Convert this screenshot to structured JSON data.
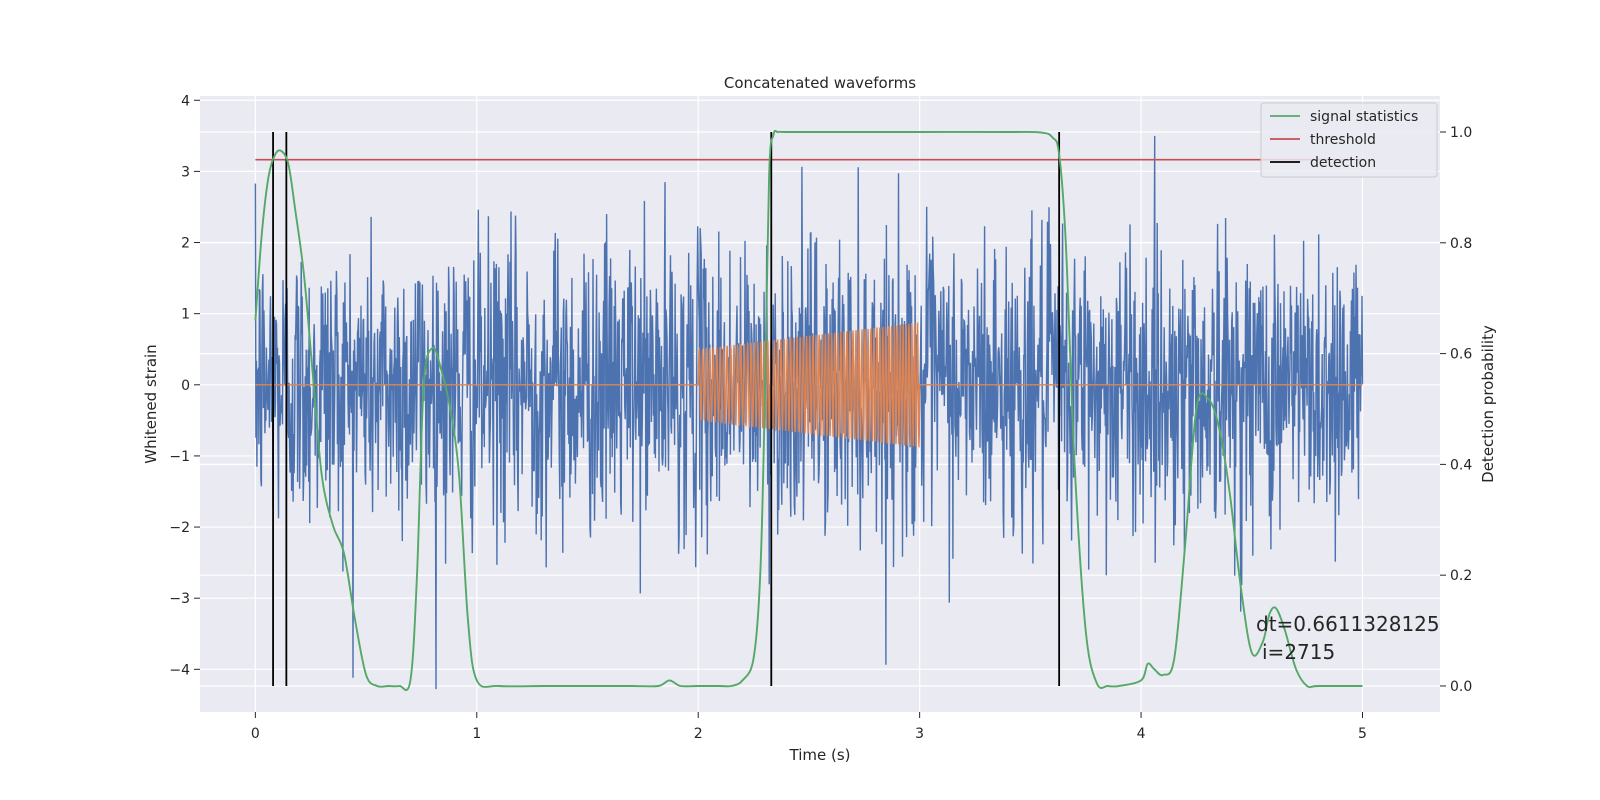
{
  "chart_data": {
    "type": "line",
    "title": "Concatenated waveforms",
    "xlabel": "Time (s)",
    "ylabel_left": "Whitened strain",
    "ylabel_right": "Detection probability",
    "xlim": [
      -0.25,
      5.35
    ],
    "ylim_left": [
      -4.6,
      4.06
    ],
    "ylim_right": [
      -0.047,
      1.065
    ],
    "xticks": [
      0,
      1,
      2,
      3,
      4,
      5
    ],
    "xtick_labels": [
      "0",
      "1",
      "2",
      "3",
      "4",
      "5"
    ],
    "yticks_left": [
      -4,
      -3,
      -2,
      -1,
      0,
      1,
      2,
      3,
      4
    ],
    "ytick_labels_left": [
      "−4",
      "−3",
      "−2",
      "−1",
      "0",
      "1",
      "2",
      "3",
      "4"
    ],
    "yticks_right": [
      0.0,
      0.2,
      0.4,
      0.6,
      0.8,
      1.0
    ],
    "ytick_labels_right": [
      "0.0",
      "0.2",
      "0.4",
      "0.6",
      "0.8",
      "1.0"
    ],
    "grid": true,
    "legend_position": "top-right",
    "legend": [
      {
        "label": "signal statistics",
        "color": "#55a868"
      },
      {
        "label": "threshold",
        "color": "#c44e52"
      },
      {
        "label": "detection",
        "color": "#000000"
      }
    ],
    "noise": {
      "color": "#4c72b0",
      "x_range": [
        0,
        5
      ],
      "typical_amplitude": 1.2,
      "peak": 3.65,
      "trough": -4.4
    },
    "injection": {
      "color": "#dd8452",
      "x_range": [
        2.0,
        3.0
      ],
      "amp_start": 0.5,
      "amp_end": 0.88
    },
    "signal_statistics": {
      "x": [
        0,
        0.03,
        0.06,
        0.09,
        0.12,
        0.15,
        0.18,
        0.22,
        0.26,
        0.3,
        0.35,
        0.4,
        0.45,
        0.5,
        0.55,
        0.6,
        0.65,
        0.7,
        0.73,
        0.76,
        0.8,
        0.84,
        0.88,
        0.92,
        0.96,
        1.0,
        1.1,
        1.3,
        1.5,
        1.7,
        1.82,
        1.87,
        1.92,
        2.0,
        2.1,
        2.15,
        2.2,
        2.25,
        2.28,
        2.3,
        2.32,
        2.34,
        2.36,
        2.4,
        2.6,
        3.0,
        3.4,
        3.55,
        3.6,
        3.63,
        3.66,
        3.7,
        3.75,
        3.8,
        3.85,
        3.9,
        4.0,
        4.03,
        4.06,
        4.1,
        4.15,
        4.2,
        4.25,
        4.3,
        4.35,
        4.4,
        4.45,
        4.5,
        4.55,
        4.58,
        4.61,
        4.65,
        4.7,
        4.75,
        4.8,
        5.0
      ],
      "y": [
        0.66,
        0.82,
        0.92,
        0.96,
        0.965,
        0.94,
        0.86,
        0.74,
        0.56,
        0.38,
        0.29,
        0.24,
        0.12,
        0.02,
        0.0,
        0.0,
        0.0,
        0.01,
        0.2,
        0.54,
        0.61,
        0.57,
        0.5,
        0.38,
        0.12,
        0.01,
        0.0,
        0.0,
        0.0,
        0.0,
        0.0,
        0.01,
        0.0,
        0.0,
        0.0,
        0.0,
        0.01,
        0.05,
        0.2,
        0.5,
        0.92,
        0.995,
        1.0,
        1.0,
        1.0,
        1.0,
        1.0,
        0.999,
        0.99,
        0.96,
        0.8,
        0.4,
        0.1,
        0.005,
        0.0,
        0.0,
        0.01,
        0.04,
        0.03,
        0.02,
        0.05,
        0.26,
        0.5,
        0.52,
        0.47,
        0.35,
        0.18,
        0.06,
        0.08,
        0.13,
        0.14,
        0.1,
        0.03,
        0.0,
        0.0,
        0.0
      ],
      "color": "#55a868"
    },
    "threshold": {
      "value": 0.95,
      "x_range": [
        0,
        5
      ],
      "color": "#c44e52"
    },
    "detections": {
      "x": [
        0.08,
        0.14,
        2.33,
        3.63
      ],
      "color": "#000000"
    },
    "annotations": [
      "dt=0.6611328125",
      "i=2715"
    ]
  }
}
